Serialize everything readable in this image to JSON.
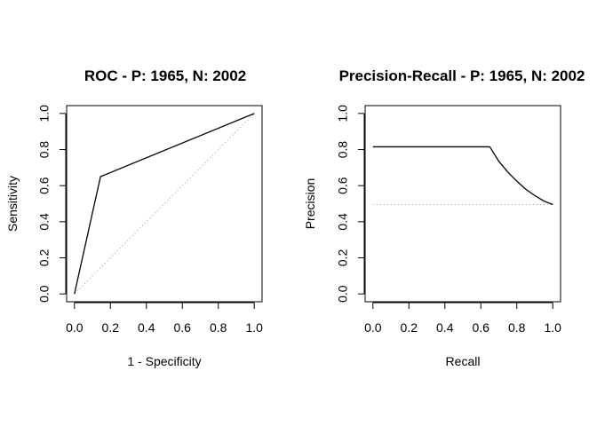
{
  "chart_data": [
    {
      "type": "line",
      "title": "ROC - P: 1965, N: 2002",
      "xlabel": "1 - Specificity",
      "ylabel": "Sensitivity",
      "xlim": [
        0,
        1
      ],
      "ylim": [
        0,
        1
      ],
      "xticks": [
        "0.0",
        "0.2",
        "0.4",
        "0.6",
        "0.8",
        "1.0"
      ],
      "yticks": [
        "0.0",
        "0.2",
        "0.4",
        "0.6",
        "0.8",
        "1.0"
      ],
      "grid": false,
      "line_color": "#000000",
      "reference_color": "#b3b3b3",
      "series": [
        {
          "x": [
            0,
            0.145,
            1
          ],
          "y": [
            0,
            0.65,
            1
          ]
        }
      ],
      "reference_line": {
        "x": [
          0,
          1
        ],
        "y": [
          0,
          1
        ]
      }
    },
    {
      "type": "line",
      "title": "Precision-Recall - P: 1965, N: 2002",
      "xlabel": "Recall",
      "ylabel": "Precision",
      "xlim": [
        0,
        1
      ],
      "ylim": [
        0,
        1
      ],
      "xticks": [
        "0.0",
        "0.2",
        "0.4",
        "0.6",
        "0.8",
        "1.0"
      ],
      "yticks": [
        "0.0",
        "0.2",
        "0.4",
        "0.6",
        "0.8",
        "1.0"
      ],
      "grid": false,
      "line_color": "#000000",
      "reference_color": "#b3b3b3",
      "series": [
        {
          "x": [
            0,
            0.65,
            0.7,
            0.75,
            0.8,
            0.85,
            0.9,
            0.95,
            1.0
          ],
          "y": [
            0.815,
            0.815,
            0.735,
            0.675,
            0.625,
            0.58,
            0.545,
            0.515,
            0.495
          ]
        }
      ],
      "reference_line": {
        "x": [
          0,
          1
        ],
        "y": [
          0.495,
          0.495
        ]
      }
    }
  ]
}
